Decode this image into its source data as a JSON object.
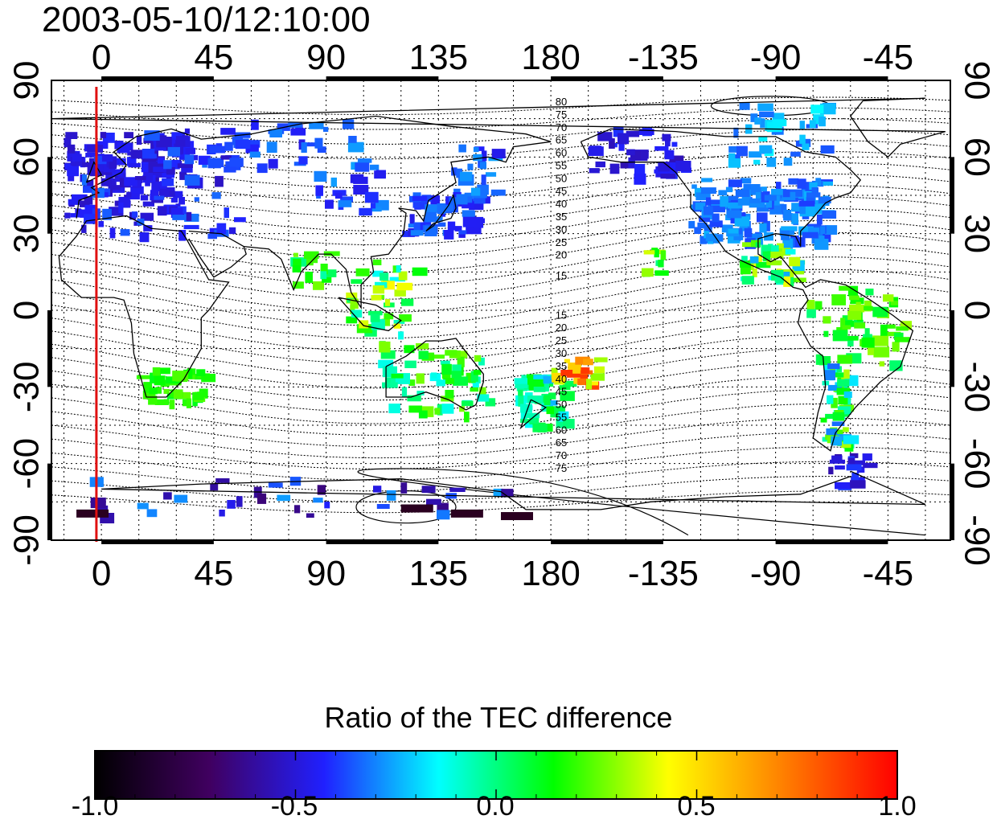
{
  "title": "2003-05-10/12:10:00",
  "map": {
    "lon_ticks": [
      "0",
      "45",
      "90",
      "135",
      "180",
      "-135",
      "-90",
      "-45"
    ],
    "lat_ticks": [
      "90",
      "60",
      "30",
      "0",
      "-30",
      "-60",
      "-90"
    ],
    "contour_labels_north": [
      "80",
      "75",
      "70",
      "65",
      "60",
      "55",
      "50",
      "45",
      "40",
      "35",
      "30",
      "25",
      "20",
      "15"
    ],
    "contour_labels_south": [
      "15",
      "20",
      "25",
      "30",
      "35",
      "40",
      "45",
      "50",
      "55",
      "60",
      "65",
      "70",
      "75"
    ],
    "marker_longitude": -2,
    "marker_color": "#e01010"
  },
  "colorbar": {
    "title": "Ratio of the TEC difference",
    "min": -1.0,
    "max": 1.0,
    "tick_labels": [
      "-1.0",
      "-0.5",
      "0.0",
      "0.5",
      "1.0"
    ],
    "colors": [
      "#000000",
      "#400060",
      "#2020ff",
      "#00ffff",
      "#00ff00",
      "#ffff00",
      "#ff8000",
      "#ff0000"
    ]
  }
}
